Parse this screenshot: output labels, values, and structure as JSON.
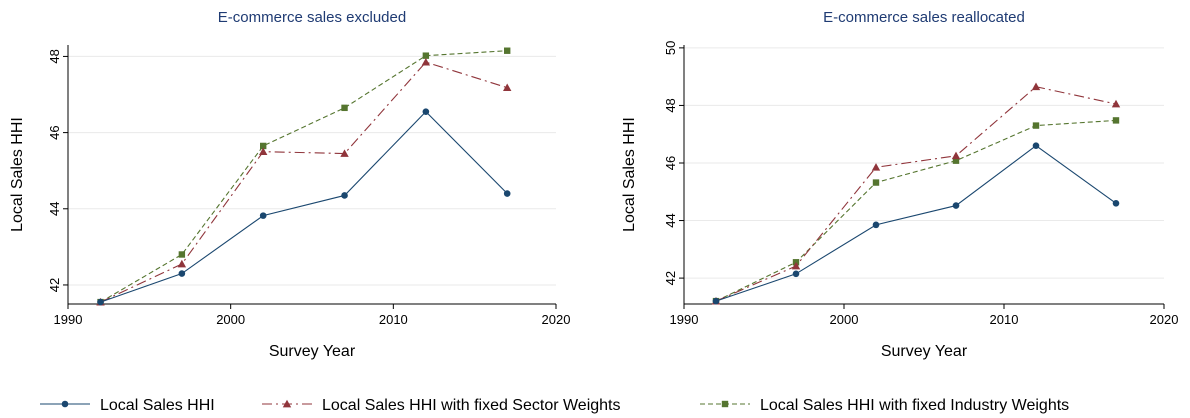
{
  "chart_data": [
    {
      "type": "line",
      "title": "E-commerce sales excluded",
      "xlabel": "Survey Year",
      "ylabel": "Local Sales HHI",
      "x": [
        1992,
        1997,
        2002,
        2007,
        2012,
        2017
      ],
      "xlim": [
        1990,
        2020
      ],
      "xticks": [
        "1990",
        "2000",
        "2010",
        "2020"
      ],
      "ylim": [
        41.5,
        48.3
      ],
      "yticks": [
        "42",
        "44",
        "46",
        "48"
      ],
      "grid": true,
      "series": [
        {
          "name": "Local Sales HHI",
          "values": [
            41.55,
            42.3,
            43.82,
            44.35,
            46.55,
            44.4
          ]
        },
        {
          "name": "Local Sales HHI with fixed Sector Weights",
          "values": [
            41.55,
            42.55,
            45.5,
            45.45,
            47.85,
            47.18
          ]
        },
        {
          "name": "Local Sales HHI with fixed Industry Weights",
          "values": [
            41.55,
            42.8,
            45.65,
            46.65,
            48.02,
            48.15
          ]
        }
      ]
    },
    {
      "type": "line",
      "title": "E-commerce sales reallocated",
      "xlabel": "Survey Year",
      "ylabel": "Local Sales HHI",
      "x": [
        1992,
        1997,
        2002,
        2007,
        2012,
        2017
      ],
      "xlim": [
        1990,
        2020
      ],
      "xticks": [
        "1990",
        "2000",
        "2010",
        "2020"
      ],
      "ylim": [
        41.1,
        50.1
      ],
      "yticks": [
        "42",
        "44",
        "46",
        "48",
        "50"
      ],
      "grid": true,
      "series": [
        {
          "name": "Local Sales HHI",
          "values": [
            41.2,
            42.15,
            43.85,
            44.52,
            46.6,
            44.6
          ]
        },
        {
          "name": "Local Sales HHI with fixed Sector Weights",
          "values": [
            41.2,
            42.42,
            45.85,
            46.25,
            48.65,
            48.05
          ]
        },
        {
          "name": "Local Sales HHI with fixed Industry Weights",
          "values": [
            41.2,
            42.55,
            45.32,
            46.08,
            47.3,
            47.48
          ]
        }
      ]
    }
  ],
  "legend": {
    "placement": "bottom",
    "items": [
      {
        "label": "Local Sales HHI",
        "color": "#1a476f",
        "marker": "circle"
      },
      {
        "label": "Local Sales HHI with fixed Sector Weights",
        "color": "#90353b",
        "marker": "triangle"
      },
      {
        "label": "Local Sales HHI with fixed Industry Weights",
        "color": "#55752f",
        "marker": "square"
      }
    ]
  },
  "colors": {
    "series": [
      "#1a476f",
      "#90353b",
      "#55752f"
    ],
    "title": "#1f3b73"
  }
}
